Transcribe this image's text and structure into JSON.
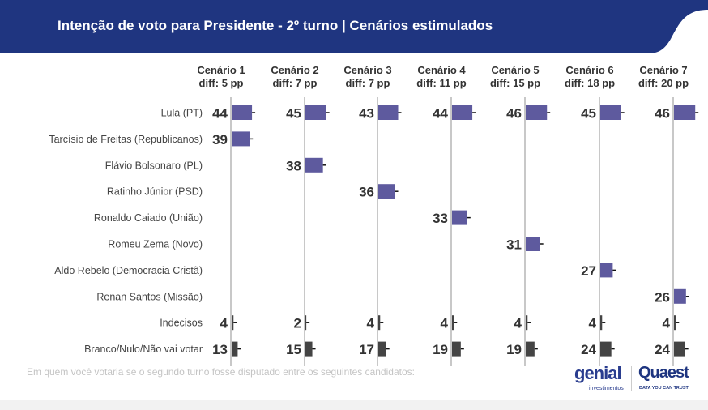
{
  "header": {
    "title": "Intenção de voto para Presidente - 2º turno | Cenários estimulados"
  },
  "footnote": "Em quem você votaria se o segundo turno fosse disputado entre os seguintes candidatos:",
  "logos": {
    "genial": "genial",
    "genial_sub": "investimentos",
    "quaest": "Quaest",
    "quaest_sub": "DATA YOU CAN TRUST"
  },
  "colors": {
    "header": "#1f3580",
    "candidate_bar": "#5e5a9e",
    "other_bar": "#444444",
    "axis_line": "#c8c8c8",
    "value_text": "#333333"
  },
  "chart_data": {
    "type": "bar",
    "orientation": "horizontal small multiples",
    "categories": [
      "Lula (PT)",
      "Tarcísio de Freitas (Republicanos)",
      "Flávio Bolsonaro (PL)",
      "Ratinho Júnior (PSD)",
      "Ronaldo Caiado (União)",
      "Romeu Zema (Novo)",
      "Aldo Rebelo (Democracia Cristã)",
      "Renan Santos (Missão)",
      "Indecisos",
      "Branco/Nulo/Não vai votar"
    ],
    "series": [
      {
        "name": "Cenário 1",
        "subtitle": "diff: 5 pp",
        "values": [
          44,
          39,
          null,
          null,
          null,
          null,
          null,
          null,
          4,
          13
        ]
      },
      {
        "name": "Cenário 2",
        "subtitle": "diff: 7 pp",
        "values": [
          45,
          null,
          38,
          null,
          null,
          null,
          null,
          null,
          2,
          15
        ]
      },
      {
        "name": "Cenário 3",
        "subtitle": "diff: 7 pp",
        "values": [
          43,
          null,
          null,
          36,
          null,
          null,
          null,
          null,
          4,
          17
        ]
      },
      {
        "name": "Cenário 4",
        "subtitle": "diff: 11 pp",
        "values": [
          44,
          null,
          null,
          null,
          33,
          null,
          null,
          null,
          4,
          19
        ]
      },
      {
        "name": "Cenário 5",
        "subtitle": "diff: 15 pp",
        "values": [
          46,
          null,
          null,
          null,
          null,
          31,
          null,
          null,
          4,
          19
        ]
      },
      {
        "name": "Cenário 6",
        "subtitle": "diff: 18 pp",
        "values": [
          45,
          null,
          null,
          null,
          null,
          null,
          27,
          null,
          4,
          24
        ]
      },
      {
        "name": "Cenário 7",
        "subtitle": "diff: 20 pp",
        "values": [
          46,
          null,
          null,
          null,
          null,
          null,
          null,
          26,
          4,
          24
        ]
      }
    ]
  }
}
